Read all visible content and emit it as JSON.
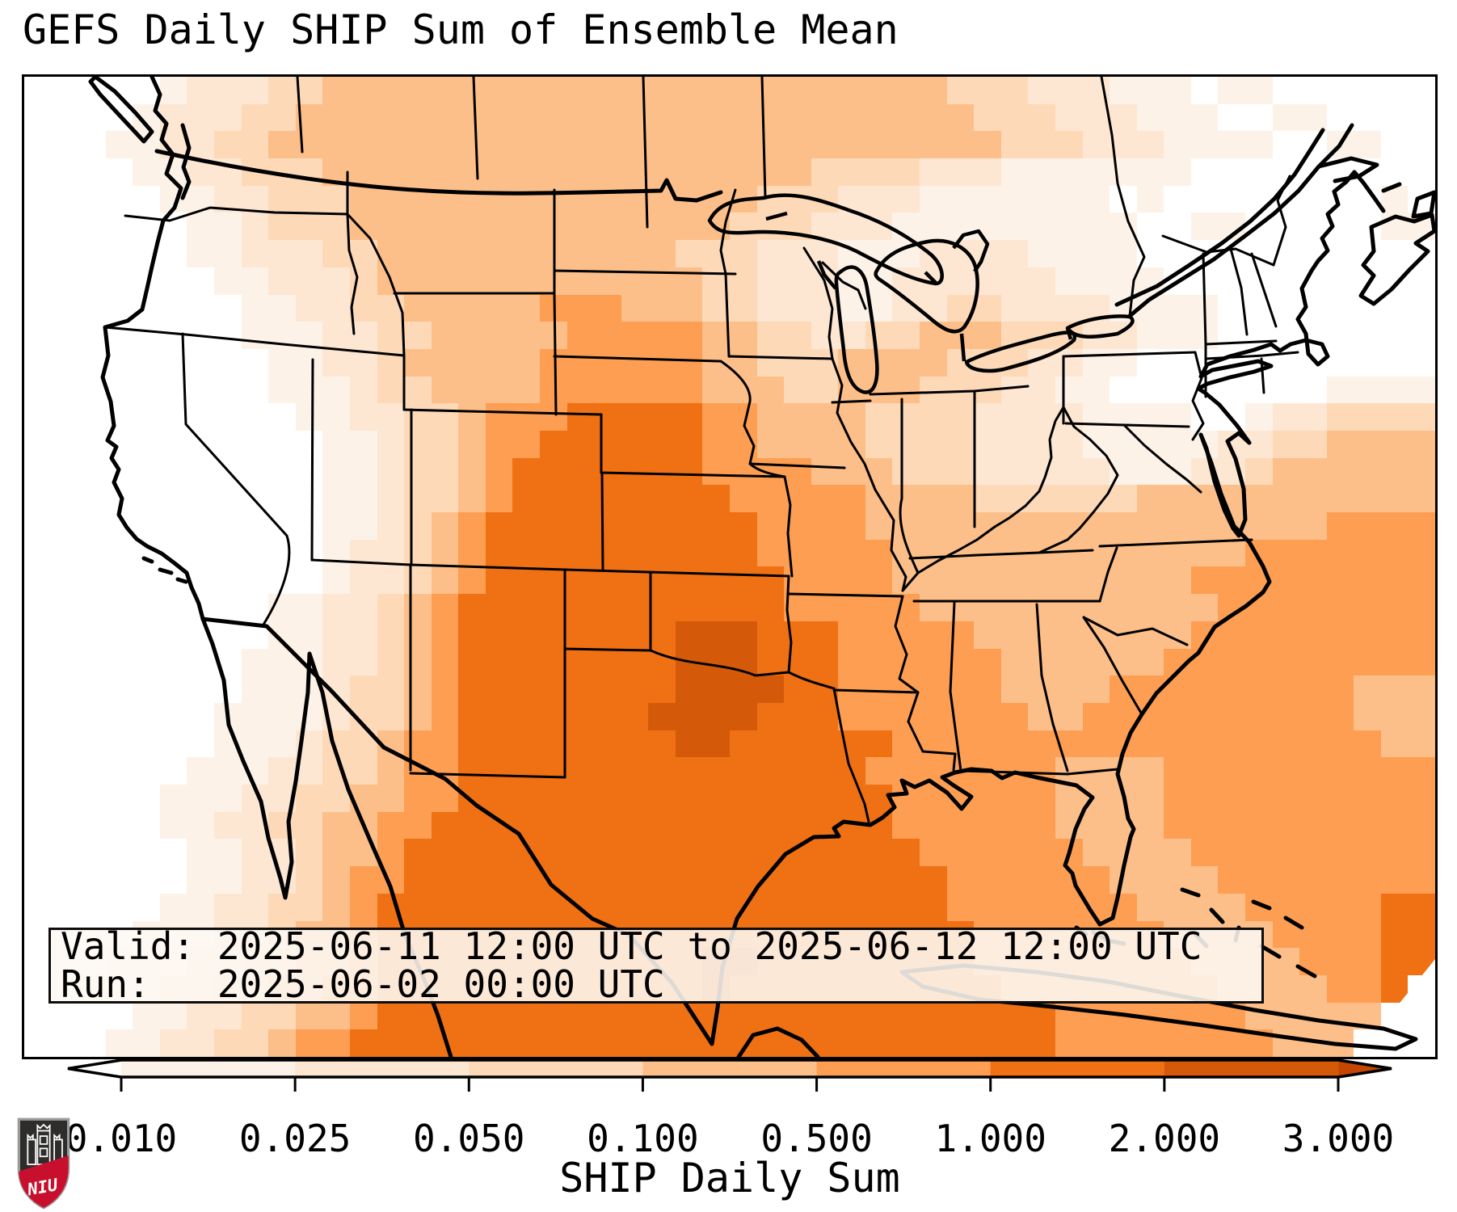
{
  "title": "GEFS Daily SHIP Sum of Ensemble Mean",
  "info_box": {
    "valid_line": "Valid: 2025-06-11 12:00 UTC to 2025-06-12 12:00 UTC",
    "run_line": "Run:   2025-06-02 00:00 UTC"
  },
  "colorbar": {
    "label": "SHIP Daily Sum",
    "tick_labels": [
      "0.010",
      "0.025",
      "0.050",
      "0.100",
      "0.500",
      "1.000",
      "2.000",
      "3.000"
    ],
    "boundaries": [
      0.01,
      0.025,
      0.05,
      0.1,
      0.5,
      1.0,
      2.0,
      3.0
    ],
    "segment_colors": [
      "#fdf2e7",
      "#fde7d2",
      "#fdd9b8",
      "#fdbf89",
      "#fd9e53",
      "#f07014",
      "#d45a0a"
    ],
    "under_color": "#ffffff",
    "over_color": "#c44601",
    "outline_color": "#000000"
  },
  "logo": {
    "text": "NIU",
    "shield_dark": "#2e2d2c",
    "shield_red": "#c8102e",
    "border_gray": "#9b9b9b"
  },
  "chart_data": {
    "type": "heatmap",
    "title": "GEFS Daily SHIP Sum of Ensemble Mean",
    "colorbar_label": "SHIP Daily Sum",
    "levels": [
      0.01,
      0.025,
      0.05,
      0.1,
      0.5,
      1.0,
      2.0,
      3.0
    ],
    "extend": "both",
    "region": "Continental United States with southern Canada, northern Mexico, Gulf of Mexico and Cuba",
    "max_area": "Southern Oklahoma / North Texas (2.000-3.000 band)"
  },
  "map": {
    "grid_cols": 52,
    "grid_rows": 36,
    "palette": [
      "#ffffff",
      "#fdf2e7",
      "#fde7d2",
      "#fdd9b8",
      "#fdbf89",
      "#fd9e53",
      "#f07014",
      "#d45a0a",
      "#c44601"
    ],
    "grid": [
      "0000012223344444444444444444444444333222111011000000",
      "0000122233444444444444444444444444433322211100110000",
      "0001122334444444444444444444444444443332221111001100",
      "0000112233344444444444444444433332221111111000000000",
      "0000011223334444444444444443332221111111010000000010",
      "0000001123334444444444444433322211111111100110000011",
      "0000001122233444444444443332221112222111100000000000",
      "0000000112223444444444444332221122222211110000000000",
      "0000000011223344444555444332221122332222111100000000",
      "0000000011122334444455555443322334443332211100000000",
      "0000000001122344444555555443334444333221100000000000",
      "0000000001112334444555555444334443332211000000001111",
      "0000000000112233455566666554444333322221111001223333",
      "0000000000011233455666666554444333322221111122334444",
      "0000000000011233456666666555544433322222111223444444",
      "0000000000011233456666666655555444433333344444444444",
      "0000000000011234566666666665555444444444444444445555",
      "0000000000012234566666666665555544444444444445555555",
      "0000000000012234566666666666555544444444444555555555",
      "0000000001122345666666666666555554444444444455555555",
      "0000000001122345666666667776665555544444444555555555",
      "0000000011122345666666667776665555554444445555555555",
      "0000000011123345666666667777665555554444555555555444",
      "0000000111123345666666677776665555555445555555555444",
      "0000000111233455666666667766666655555555555555555544",
      "0000001112233455666666666666666555555544445555555555",
      "0000011122334455666666666666666655555544445555555555",
      "0000011223344556666666666666666655555544445555555555",
      "0000001122344566666666666666666665555554444555555555",
      "0000001122345566666666666666666666555555444455555555",
      "0000011223345666666666666666666666555555544445555566",
      "0000111223445666666666666666666666655555554444555566",
      "0001112233445666666666666776666666655555555444455566",
      "0011122334455666666666666766666666665555555544445560",
      "0000112233445666666666666666666666666655555554444400",
      "0001122334556666666666666666666666666655555555444000"
    ]
  }
}
